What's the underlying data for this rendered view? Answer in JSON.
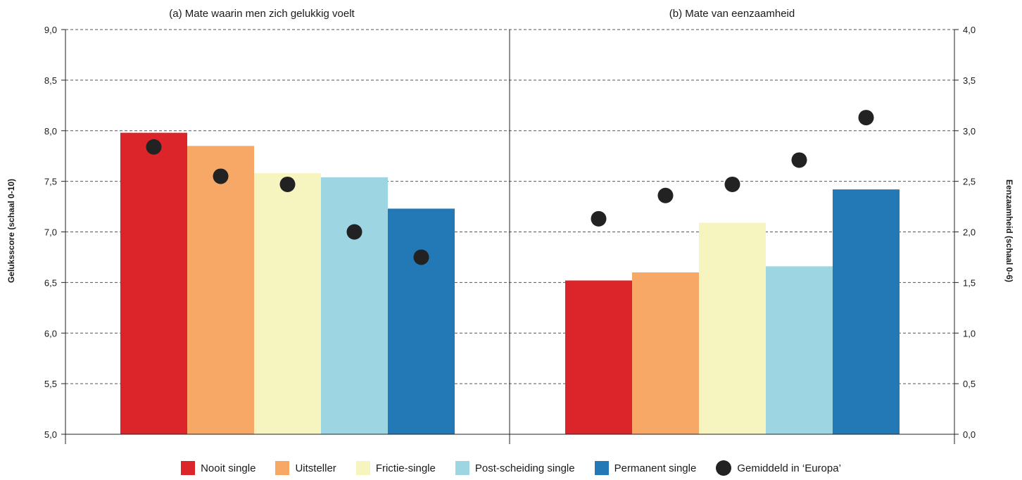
{
  "chart_data": {
    "type": "bar",
    "colors": {
      "nooit_single": "#dc242b",
      "uitsteller": "#f7a766",
      "frictie_single": "#f7f5bf",
      "post_scheiding_single": "#9ed5e3",
      "permanent_single": "#2378b6",
      "europa_dot": "#222222"
    },
    "panels": [
      {
        "title": "(a) Mate waarin men zich gelukkig voelt",
        "ylabel": "Geluksscore (schaal 0-10)",
        "ylim": [
          5.0,
          9.0
        ],
        "ticks": [
          "5,0",
          "5,5",
          "6,0",
          "6,5",
          "7,0",
          "7,5",
          "8,0",
          "8,5",
          "9,0"
        ],
        "tick_values": [
          5.0,
          5.5,
          6.0,
          6.5,
          7.0,
          7.5,
          8.0,
          8.5,
          9.0
        ],
        "categories": [
          "Nooit single",
          "Uitsteller",
          "Frictie-single",
          "Post-scheiding single",
          "Permanent single"
        ],
        "bars": [
          7.98,
          7.85,
          7.58,
          7.54,
          7.23
        ],
        "europa": [
          7.84,
          7.55,
          7.47,
          7.0,
          6.75
        ]
      },
      {
        "title": "(b) Mate van eenzaamheid",
        "ylabel": "Eenzaamheid (schaal 0-6)",
        "ylim": [
          0.0,
          4.0
        ],
        "ticks": [
          "0,0",
          "0,5",
          "1,0",
          "1,5",
          "2,0",
          "2,5",
          "3,0",
          "3,5",
          "4,0"
        ],
        "tick_values": [
          0.0,
          0.5,
          1.0,
          1.5,
          2.0,
          2.5,
          3.0,
          3.5,
          4.0
        ],
        "categories": [
          "Nooit single",
          "Uitsteller",
          "Frictie-single",
          "Post-scheiding single",
          "Permanent single"
        ],
        "bars": [
          1.52,
          1.6,
          2.09,
          1.66,
          2.42
        ],
        "europa": [
          2.13,
          2.36,
          2.47,
          2.71,
          3.13
        ]
      }
    ],
    "legend": {
      "items": [
        "Nooit single",
        "Uitsteller",
        "Frictie-single",
        "Post-scheiding single",
        "Permanent single"
      ],
      "dot_label": "Gemiddeld in ‘Europa’"
    },
    "grid": "dashed horizontal",
    "legend_position": "bottom"
  }
}
